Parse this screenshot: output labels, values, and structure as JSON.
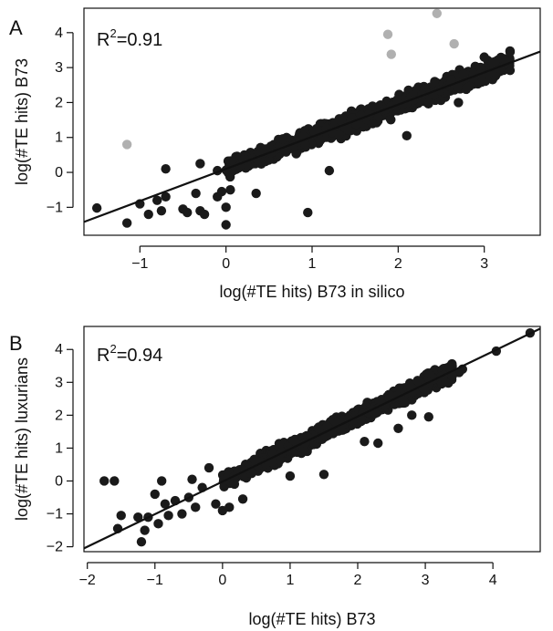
{
  "chart_data": [
    {
      "panel_label": "A",
      "type": "scatter",
      "annotation": "=0.91",
      "annotation_prefix": "R",
      "annotation_sup": "2",
      "xlabel": "log(#TE hits) B73 in silico",
      "ylabel": "log(#TE hits) B73",
      "xlim": [
        -1.65,
        3.65
      ],
      "ylim": [
        -1.8,
        4.7
      ],
      "xticks": [
        -1,
        0,
        1,
        2,
        3
      ],
      "yticks": [
        -1,
        0,
        1,
        2,
        3,
        4
      ],
      "fit_line": {
        "slope": 0.92,
        "intercept": 0.1
      },
      "main_color": "#1a1a1a",
      "outlier_color": "#b0b0b0",
      "cloud": {
        "x_range": [
          0.0,
          3.3
        ],
        "spread": 0.22,
        "n": 900
      },
      "points": [
        {
          "x": -1.5,
          "y": -1.02
        },
        {
          "x": -1.15,
          "y": -1.45
        },
        {
          "x": -1.0,
          "y": -0.9
        },
        {
          "x": -0.9,
          "y": -1.2
        },
        {
          "x": -0.8,
          "y": -0.8
        },
        {
          "x": -0.75,
          "y": -1.1
        },
        {
          "x": -0.7,
          "y": -0.7
        },
        {
          "x": -0.5,
          "y": -1.05
        },
        {
          "x": -0.45,
          "y": -1.15
        },
        {
          "x": -0.35,
          "y": -0.6
        },
        {
          "x": -0.3,
          "y": -1.1
        },
        {
          "x": -0.25,
          "y": -1.2
        },
        {
          "x": -0.1,
          "y": -0.7
        },
        {
          "x": -0.05,
          "y": -0.55
        },
        {
          "x": 0.0,
          "y": -1.5
        },
        {
          "x": 0.0,
          "y": -1.0
        },
        {
          "x": -0.7,
          "y": 0.1
        },
        {
          "x": -0.3,
          "y": 0.25
        },
        {
          "x": -0.1,
          "y": 0.05
        },
        {
          "x": 0.05,
          "y": -0.5
        },
        {
          "x": 0.35,
          "y": -0.6
        },
        {
          "x": 0.95,
          "y": -1.15
        },
        {
          "x": 1.2,
          "y": 0.05
        },
        {
          "x": 2.1,
          "y": 1.05
        },
        {
          "x": 2.7,
          "y": 2.0
        },
        {
          "x": 3.0,
          "y": 3.3
        },
        {
          "x": 3.3,
          "y": 3.45
        },
        {
          "x": 3.25,
          "y": 3.2
        },
        {
          "x": 3.1,
          "y": 3.15
        },
        {
          "x": 0.2,
          "y": 0.35
        }
      ],
      "outliers": [
        {
          "x": -1.15,
          "y": 0.8
        },
        {
          "x": 1.88,
          "y": 3.95
        },
        {
          "x": 1.92,
          "y": 3.38
        },
        {
          "x": 2.45,
          "y": 4.55
        },
        {
          "x": 2.65,
          "y": 3.68
        }
      ]
    },
    {
      "panel_label": "B",
      "type": "scatter",
      "annotation": "=0.94",
      "annotation_prefix": "R",
      "annotation_sup": "2",
      "xlabel": "log(#TE hits) B73",
      "ylabel": "log(#TE hits) luxurians",
      "xlim": [
        -2.05,
        4.7
      ],
      "ylim": [
        -2.15,
        4.7
      ],
      "xticks": [
        -2,
        -1,
        0,
        1,
        2,
        3,
        4
      ],
      "yticks": [
        -2,
        -1,
        0,
        1,
        2,
        3,
        4
      ],
      "fit_line": {
        "slope": 0.99,
        "intercept": -0.02
      },
      "main_color": "#1a1a1a",
      "cloud": {
        "x_range": [
          0.0,
          3.4
        ],
        "spread": 0.2,
        "n": 850
      },
      "points": [
        {
          "x": -1.75,
          "y": 0.0
        },
        {
          "x": -1.6,
          "y": 0.0
        },
        {
          "x": -1.55,
          "y": -1.45
        },
        {
          "x": -1.5,
          "y": -1.05
        },
        {
          "x": -1.25,
          "y": -1.1
        },
        {
          "x": -1.2,
          "y": -1.85
        },
        {
          "x": -1.15,
          "y": -1.5
        },
        {
          "x": -1.1,
          "y": -1.1
        },
        {
          "x": -1.0,
          "y": -0.4
        },
        {
          "x": -0.95,
          "y": -1.3
        },
        {
          "x": -0.9,
          "y": 0.0
        },
        {
          "x": -0.85,
          "y": -0.7
        },
        {
          "x": -0.8,
          "y": -1.05
        },
        {
          "x": -0.7,
          "y": -0.6
        },
        {
          "x": -0.6,
          "y": -1.0
        },
        {
          "x": -0.5,
          "y": -0.5
        },
        {
          "x": -0.45,
          "y": 0.05
        },
        {
          "x": -0.4,
          "y": -0.8
        },
        {
          "x": -0.3,
          "y": -0.2
        },
        {
          "x": -0.2,
          "y": 0.4
        },
        {
          "x": -0.1,
          "y": -0.7
        },
        {
          "x": 0.0,
          "y": -0.9
        },
        {
          "x": 0.1,
          "y": -0.8
        },
        {
          "x": 0.3,
          "y": -0.55
        },
        {
          "x": 1.0,
          "y": 0.15
        },
        {
          "x": 1.5,
          "y": 0.2
        },
        {
          "x": 2.1,
          "y": 1.2
        },
        {
          "x": 2.3,
          "y": 1.15
        },
        {
          "x": 2.6,
          "y": 1.6
        },
        {
          "x": 2.8,
          "y": 2.0
        },
        {
          "x": 3.05,
          "y": 1.95
        },
        {
          "x": 3.3,
          "y": 3.0
        },
        {
          "x": 3.55,
          "y": 3.4
        },
        {
          "x": 3.5,
          "y": 3.3
        },
        {
          "x": 3.4,
          "y": 3.2
        },
        {
          "x": 4.05,
          "y": 3.95
        },
        {
          "x": 4.55,
          "y": 4.5
        }
      ]
    }
  ]
}
